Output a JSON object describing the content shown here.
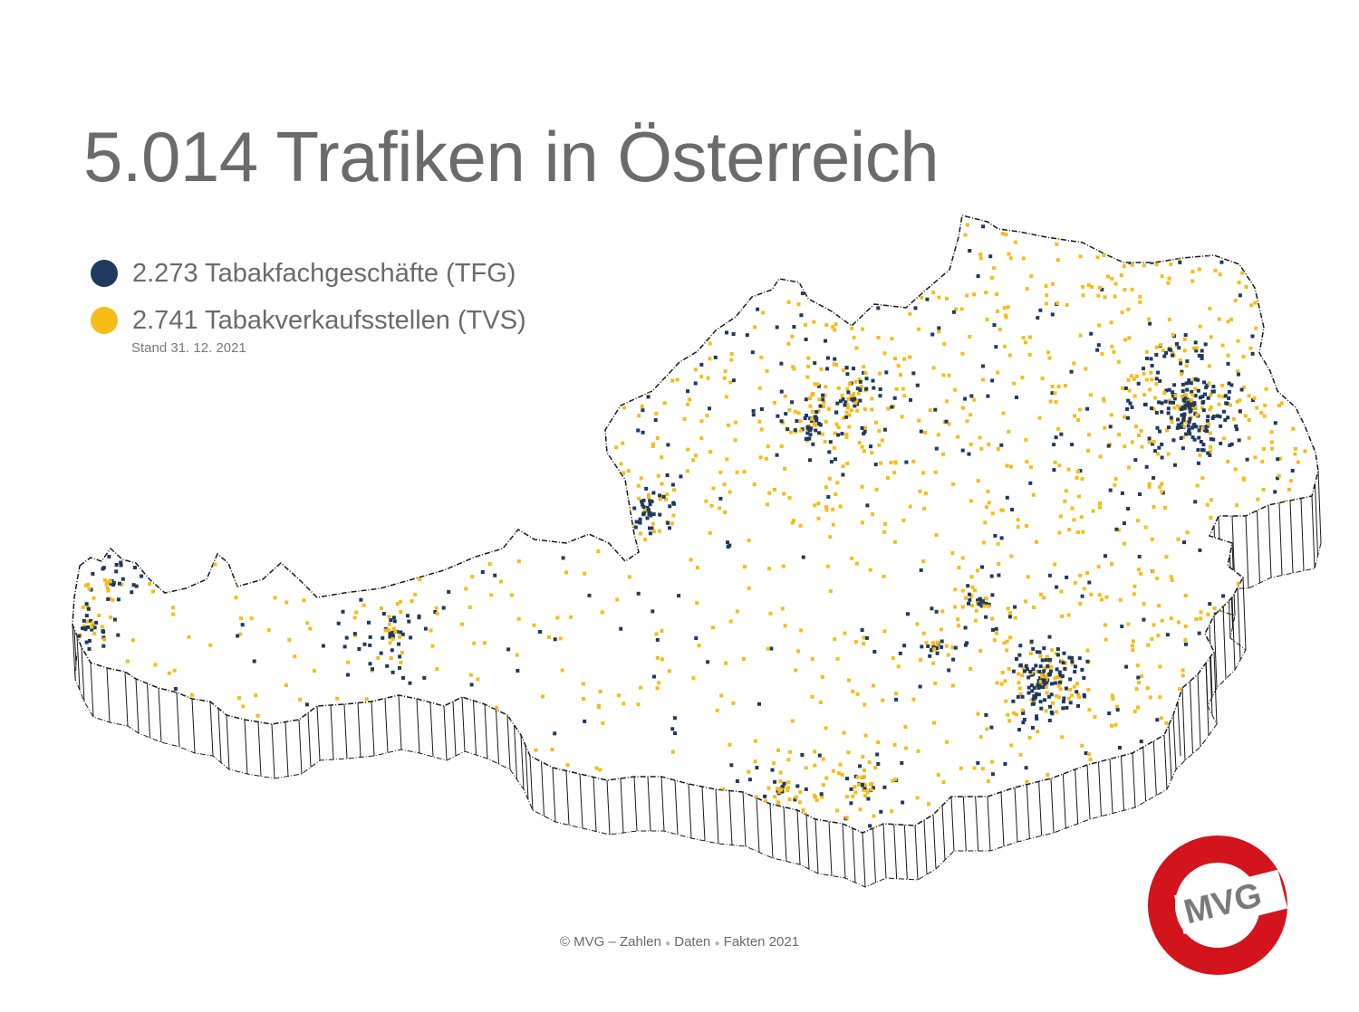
{
  "title": "5.014 Trafiken in Österreich",
  "legend": [
    {
      "label": "2.273 Tabakfachgeschäfte (TFG)",
      "color": "#1f3a5f"
    },
    {
      "label": "2.741 Tabakverkaufsstellen (TVS)",
      "color": "#f6bd16"
    }
  ],
  "stand": "Stand 31. 12. 2021",
  "footer": {
    "part1": "© MVG – Zahlen",
    "part2": "Daten",
    "part3": "Fakten 2021"
  },
  "logo": {
    "text": "MVG",
    "ring_color": "#d4141c",
    "text_color": "#7a7a7a"
  },
  "colors": {
    "tfg": "#1f3a5f",
    "tvs": "#f6bd16",
    "outline": "#1a1a1a"
  }
}
